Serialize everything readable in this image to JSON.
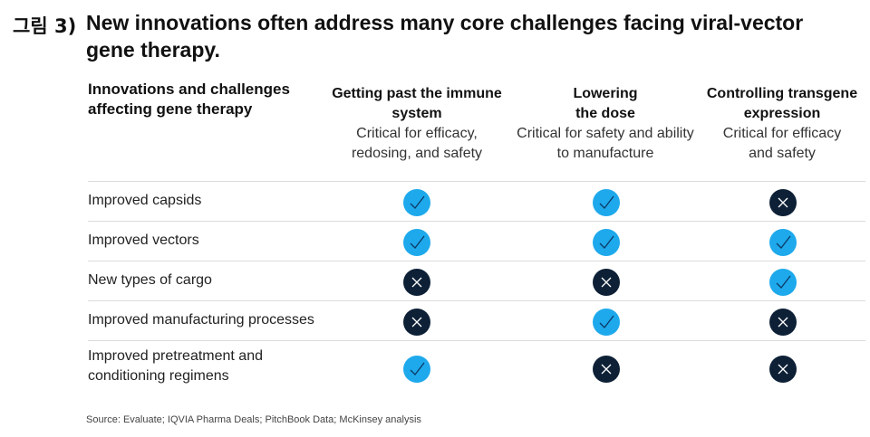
{
  "figure": {
    "label": "그림 3)",
    "title": "New innovations often address many core challenges facing viral-vector gene therapy."
  },
  "table": {
    "row_header": "Innovations and challenges affecting gene therapy",
    "columns": [
      {
        "title": "Getting past the immune system",
        "subtitle": "Critical for efficacy, redosing, and safety"
      },
      {
        "title": "Lowering the dose",
        "subtitle": "Critical for safety and ability to manufacture"
      },
      {
        "title": "Controlling transgene expression",
        "subtitle": "Critical for efficacy and safety"
      }
    ],
    "rows": [
      {
        "label": "Improved capsids",
        "values": [
          "check",
          "check",
          "cross"
        ]
      },
      {
        "label": "Improved vectors",
        "values": [
          "check",
          "check",
          "check"
        ]
      },
      {
        "label": "New types of cargo",
        "values": [
          "cross",
          "cross",
          "check"
        ]
      },
      {
        "label": "Improved manufacturing processes",
        "values": [
          "cross",
          "check",
          "cross"
        ]
      },
      {
        "label": "Improved pretreatment and conditioning regimens",
        "values": [
          "check",
          "cross",
          "cross"
        ]
      }
    ]
  },
  "colors": {
    "check": "#1ea9ec",
    "cross": "#0d2036"
  },
  "icons": {
    "check": "check-icon",
    "cross": "cross-icon"
  },
  "source": "Source: Evaluate; IQVIA Pharma Deals; PitchBook Data; McKinsey analysis"
}
